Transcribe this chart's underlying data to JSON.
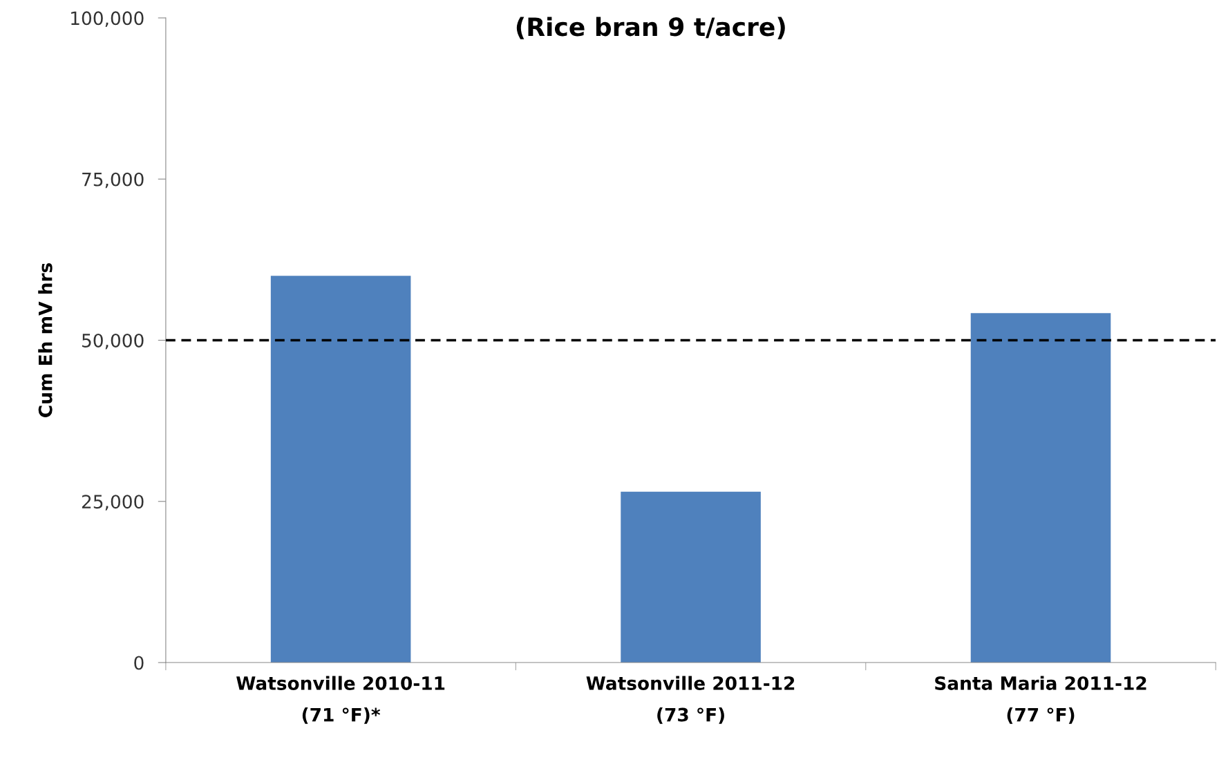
{
  "chart_data": {
    "type": "bar",
    "title": "(Rice bran 9 t/acre)",
    "ylabel": "Cum Eh mV hrs",
    "categories": [
      "Watsonville 2010-11\n(71 °F)*",
      "Watsonville 2011-12\n(73 °F)",
      "Santa Maria 2011-12\n(77 °F)"
    ],
    "values": [
      60000,
      26500,
      54200
    ],
    "color": "#4f81bd",
    "ylim": [
      0,
      100000
    ],
    "yticks": [
      {
        "value": 0,
        "label": "0"
      },
      {
        "value": 25000,
        "label": "25,000"
      },
      {
        "value": 50000,
        "label": "50,000"
      },
      {
        "value": 75000,
        "label": "75,000"
      },
      {
        "value": 100000,
        "label": "100,000"
      }
    ],
    "ref_lines": [
      {
        "axis": "y",
        "value": 50000,
        "label": null,
        "color": "#000000",
        "line_style": "dashed"
      }
    ],
    "grid": false,
    "legend": false
  }
}
